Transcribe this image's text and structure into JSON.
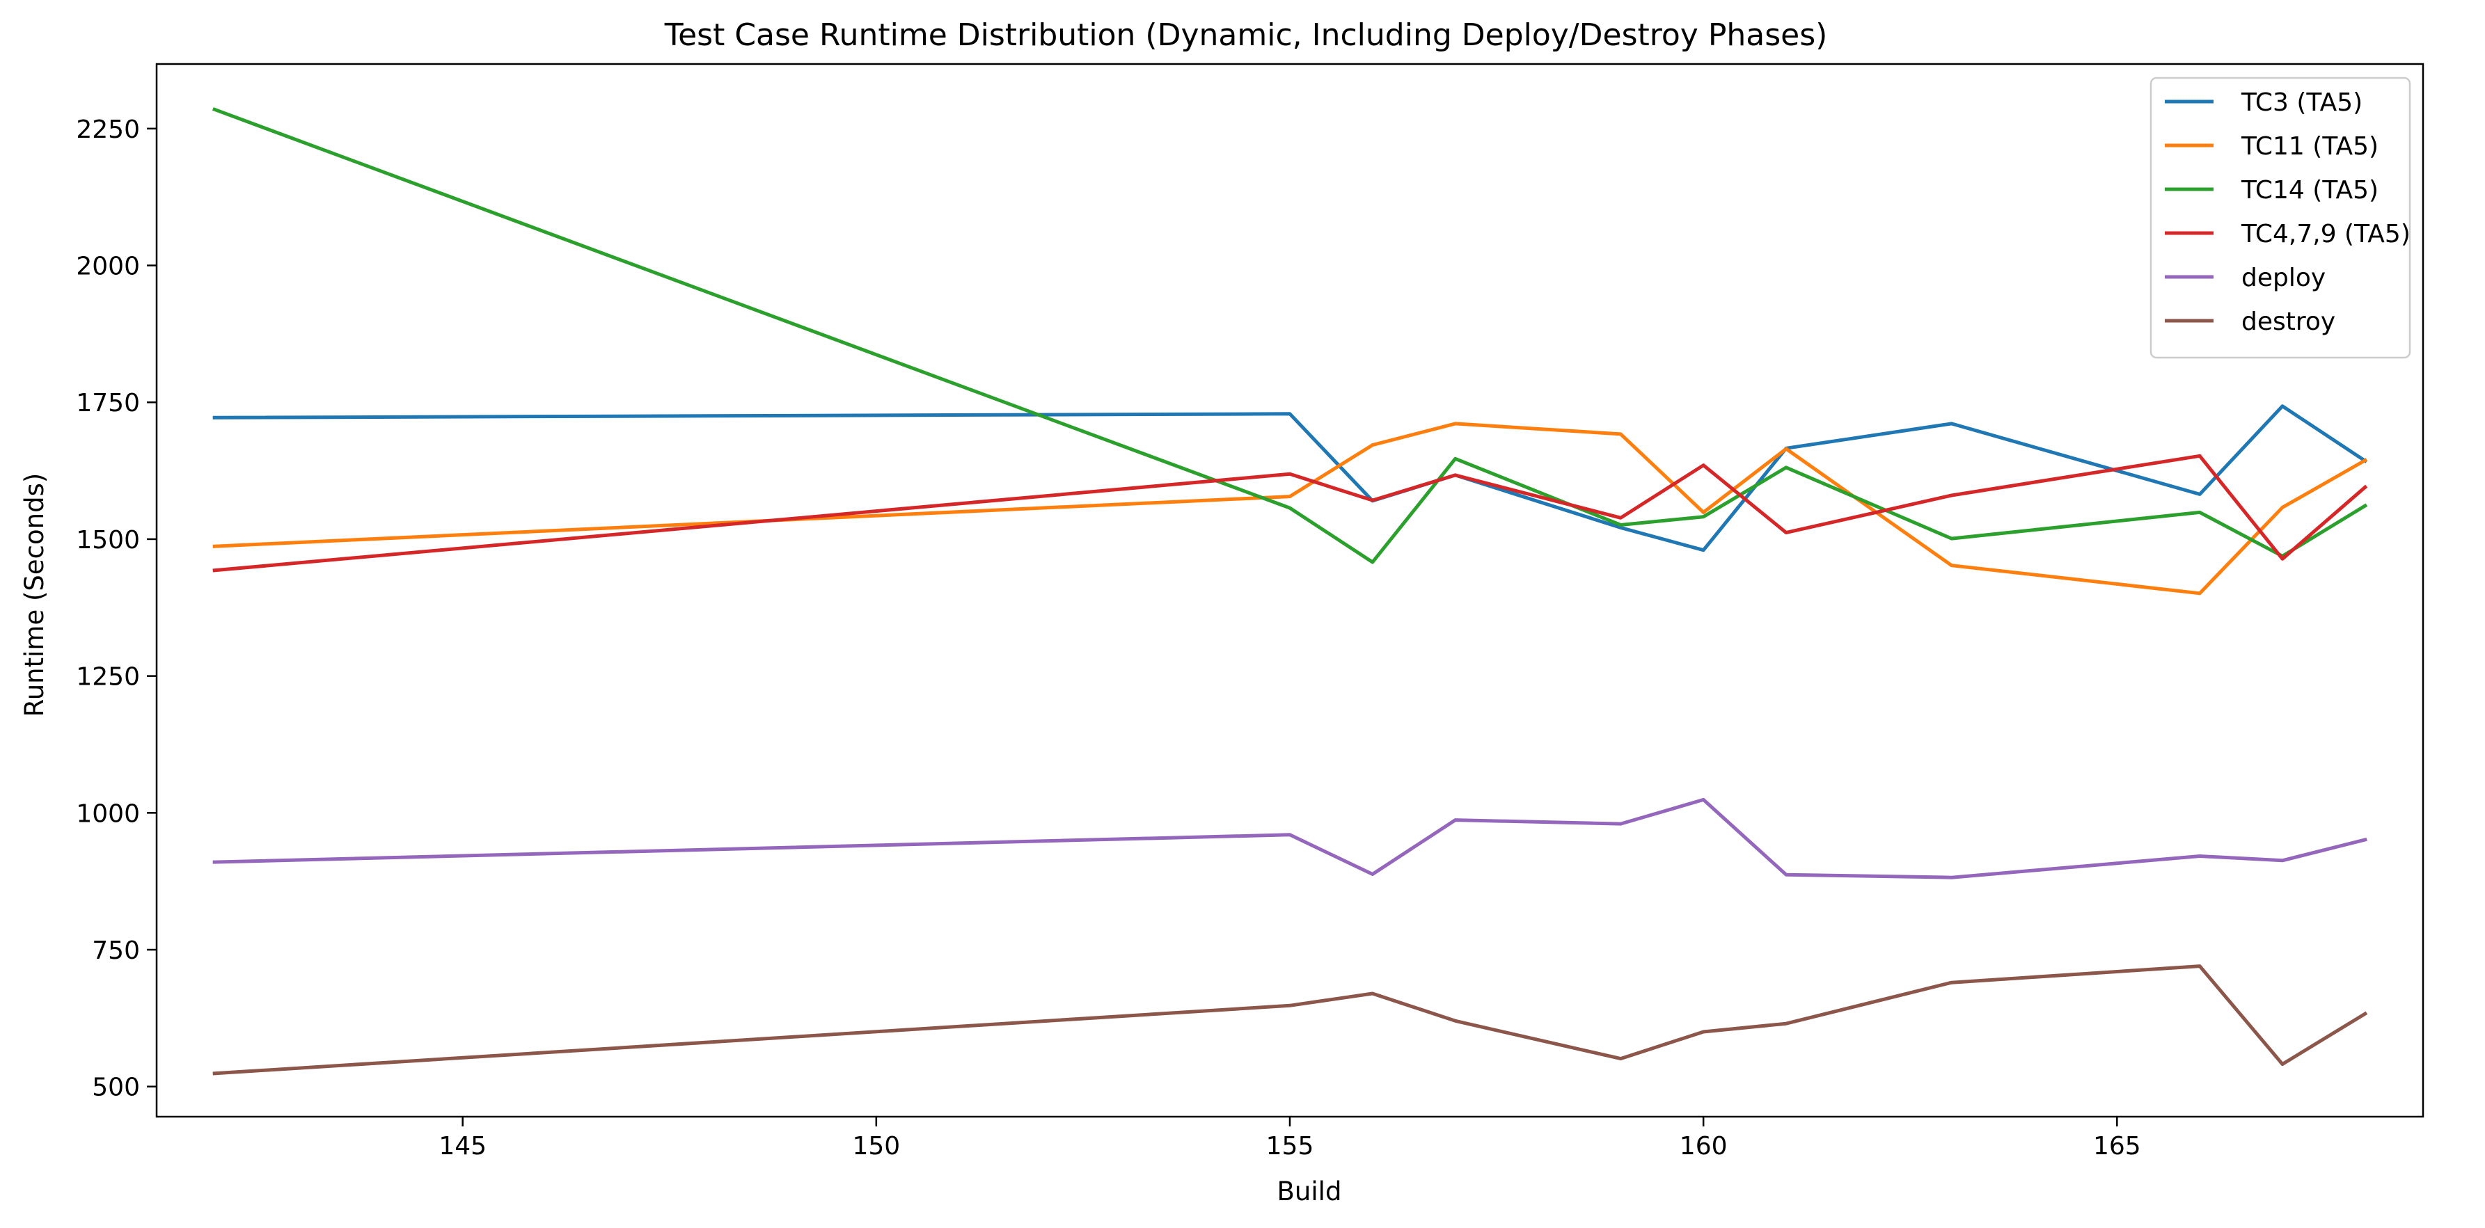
{
  "chart_data": {
    "type": "line",
    "title": "Test Case Runtime Distribution (Dynamic, Including Deploy/Destroy Phases)",
    "xlabel": "Build",
    "ylabel": "Runtime (Seconds)",
    "xlim": [
      141.3,
      168.7
    ],
    "ylim": [
      445,
      2368
    ],
    "xticks": [
      145,
      150,
      155,
      160,
      165
    ],
    "yticks": [
      500,
      750,
      1000,
      1250,
      1500,
      1750,
      2000,
      2250
    ],
    "grid": false,
    "legend_position": "top-right",
    "series": [
      {
        "name": "TC3 (TA5)",
        "color": "#1f77b4",
        "points": [
          [
            142,
            1722
          ],
          [
            155,
            1729
          ],
          [
            156,
            1570
          ],
          [
            157,
            1617
          ],
          [
            159,
            1521
          ],
          [
            160,
            1480
          ],
          [
            161,
            1666
          ],
          [
            163,
            1711
          ],
          [
            166,
            1582
          ],
          [
            167,
            1743
          ],
          [
            168,
            1643
          ]
        ]
      },
      {
        "name": "TC11 (TA5)",
        "color": "#ff7f0e",
        "points": [
          [
            142,
            1487
          ],
          [
            155,
            1578
          ],
          [
            156,
            1672
          ],
          [
            157,
            1711
          ],
          [
            159,
            1692
          ],
          [
            160,
            1549
          ],
          [
            161,
            1665
          ],
          [
            163,
            1452
          ],
          [
            166,
            1401
          ],
          [
            167,
            1558
          ],
          [
            168,
            1644
          ]
        ]
      },
      {
        "name": "TC14 (TA5)",
        "color": "#2ca02c",
        "points": [
          [
            142,
            2285
          ],
          [
            155,
            1557
          ],
          [
            156,
            1458
          ],
          [
            157,
            1647
          ],
          [
            159,
            1526
          ],
          [
            160,
            1541
          ],
          [
            161,
            1631
          ],
          [
            163,
            1501
          ],
          [
            166,
            1549
          ],
          [
            167,
            1469
          ],
          [
            168,
            1561
          ]
        ]
      },
      {
        "name": "TC4,7,9 (TA5)",
        "color": "#d62728",
        "points": [
          [
            142,
            1443
          ],
          [
            155,
            1619
          ],
          [
            156,
            1571
          ],
          [
            157,
            1617
          ],
          [
            159,
            1539
          ],
          [
            160,
            1635
          ],
          [
            161,
            1512
          ],
          [
            163,
            1580
          ],
          [
            166,
            1652
          ],
          [
            167,
            1464
          ],
          [
            168,
            1595
          ]
        ]
      },
      {
        "name": "deploy",
        "color": "#9467bd",
        "points": [
          [
            142,
            910
          ],
          [
            155,
            960
          ],
          [
            156,
            888
          ],
          [
            157,
            987
          ],
          [
            159,
            980
          ],
          [
            160,
            1024
          ],
          [
            161,
            887
          ],
          [
            163,
            882
          ],
          [
            166,
            921
          ],
          [
            167,
            913
          ],
          [
            168,
            951
          ]
        ]
      },
      {
        "name": "destroy",
        "color": "#8c564b",
        "points": [
          [
            142,
            524
          ],
          [
            155,
            648
          ],
          [
            156,
            670
          ],
          [
            157,
            620
          ],
          [
            159,
            551
          ],
          [
            160,
            600
          ],
          [
            161,
            615
          ],
          [
            163,
            690
          ],
          [
            166,
            720
          ],
          [
            167,
            541
          ],
          [
            168,
            633
          ]
        ]
      }
    ]
  }
}
